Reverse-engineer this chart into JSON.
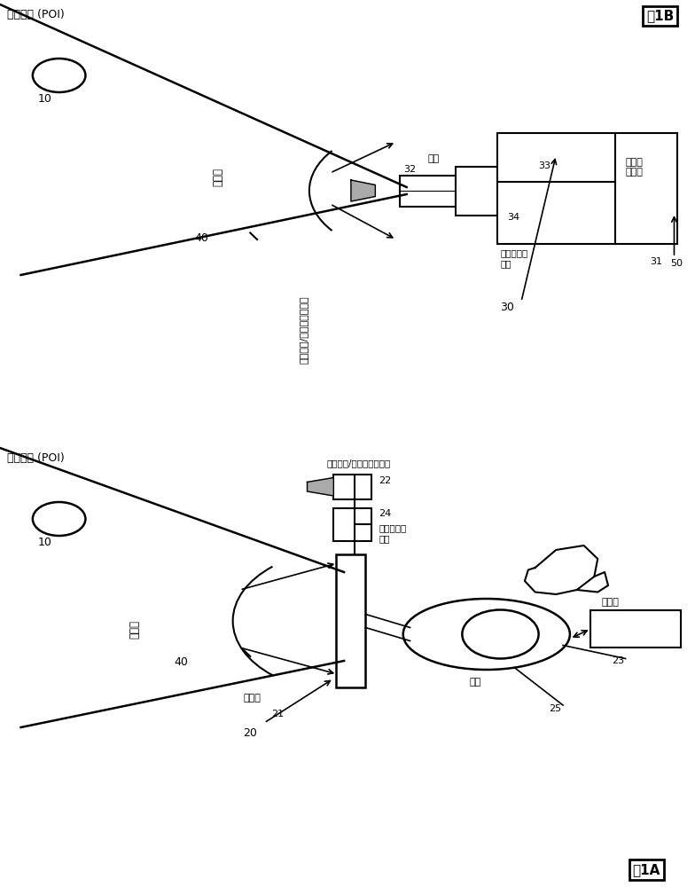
{
  "bg_color": "#ffffff",
  "fig_label_1A": "图1A",
  "fig_label_1B": "图1B",
  "label_POI": "感兴趣点 (POI)",
  "label_10": "10",
  "label_40": "40",
  "label_aperture_angle": "孔径角",
  "label_20": "20",
  "label_21": "21",
  "label_22": "22",
  "label_23": "23",
  "label_24": "24",
  "label_25": "25",
  "label_display": "显示器",
  "label_camera_tracking": "用于追踪/光线条件的相机",
  "label_additional_sensor": "附加传感器\n系统",
  "label_computer": "计算机",
  "label_eye": "眼睛",
  "label_30": "30",
  "label_31": "31",
  "label_32": "32",
  "label_33": "33",
  "label_34": "34",
  "label_50": "50",
  "label_camera": "相机",
  "label_computer_display": "计算机\n显示器"
}
